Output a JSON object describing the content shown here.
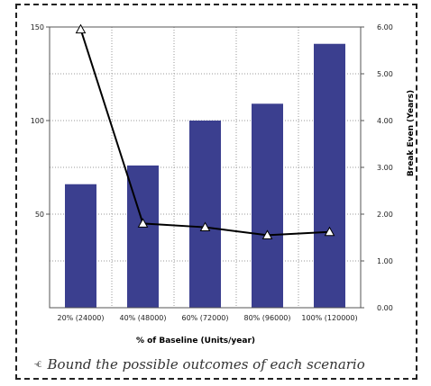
{
  "chart_data": {
    "type": "bar",
    "categories": [
      "20% (24000)",
      "40% (48000)",
      "60% (72000)",
      "80% (96000)",
      "100% (120000)"
    ],
    "series": [
      {
        "type": "bar",
        "axis": "left",
        "values": [
          66,
          76,
          100,
          109,
          141
        ],
        "color": "#3b3f8f"
      },
      {
        "type": "line",
        "axis": "right",
        "values": [
          5.95,
          1.8,
          1.72,
          1.55,
          1.62
        ],
        "color": "#000000",
        "marker": "open-triangle"
      }
    ],
    "xlabel": "% of Baseline (Units/year)",
    "ylabel": "",
    "y2label": "Break Even (Years)",
    "ylim": [
      0,
      150
    ],
    "y2lim": [
      0,
      6
    ],
    "yticks": [
      "50",
      "100",
      "150"
    ],
    "y2ticks": [
      "0.00",
      "1.00",
      "2.00",
      "3.00",
      "4.00",
      "5.00",
      "6.00"
    ],
    "grid": true
  },
  "caption": {
    "mark": "ⱕ",
    "text": "Bound the possible outcomes of each scenario"
  }
}
